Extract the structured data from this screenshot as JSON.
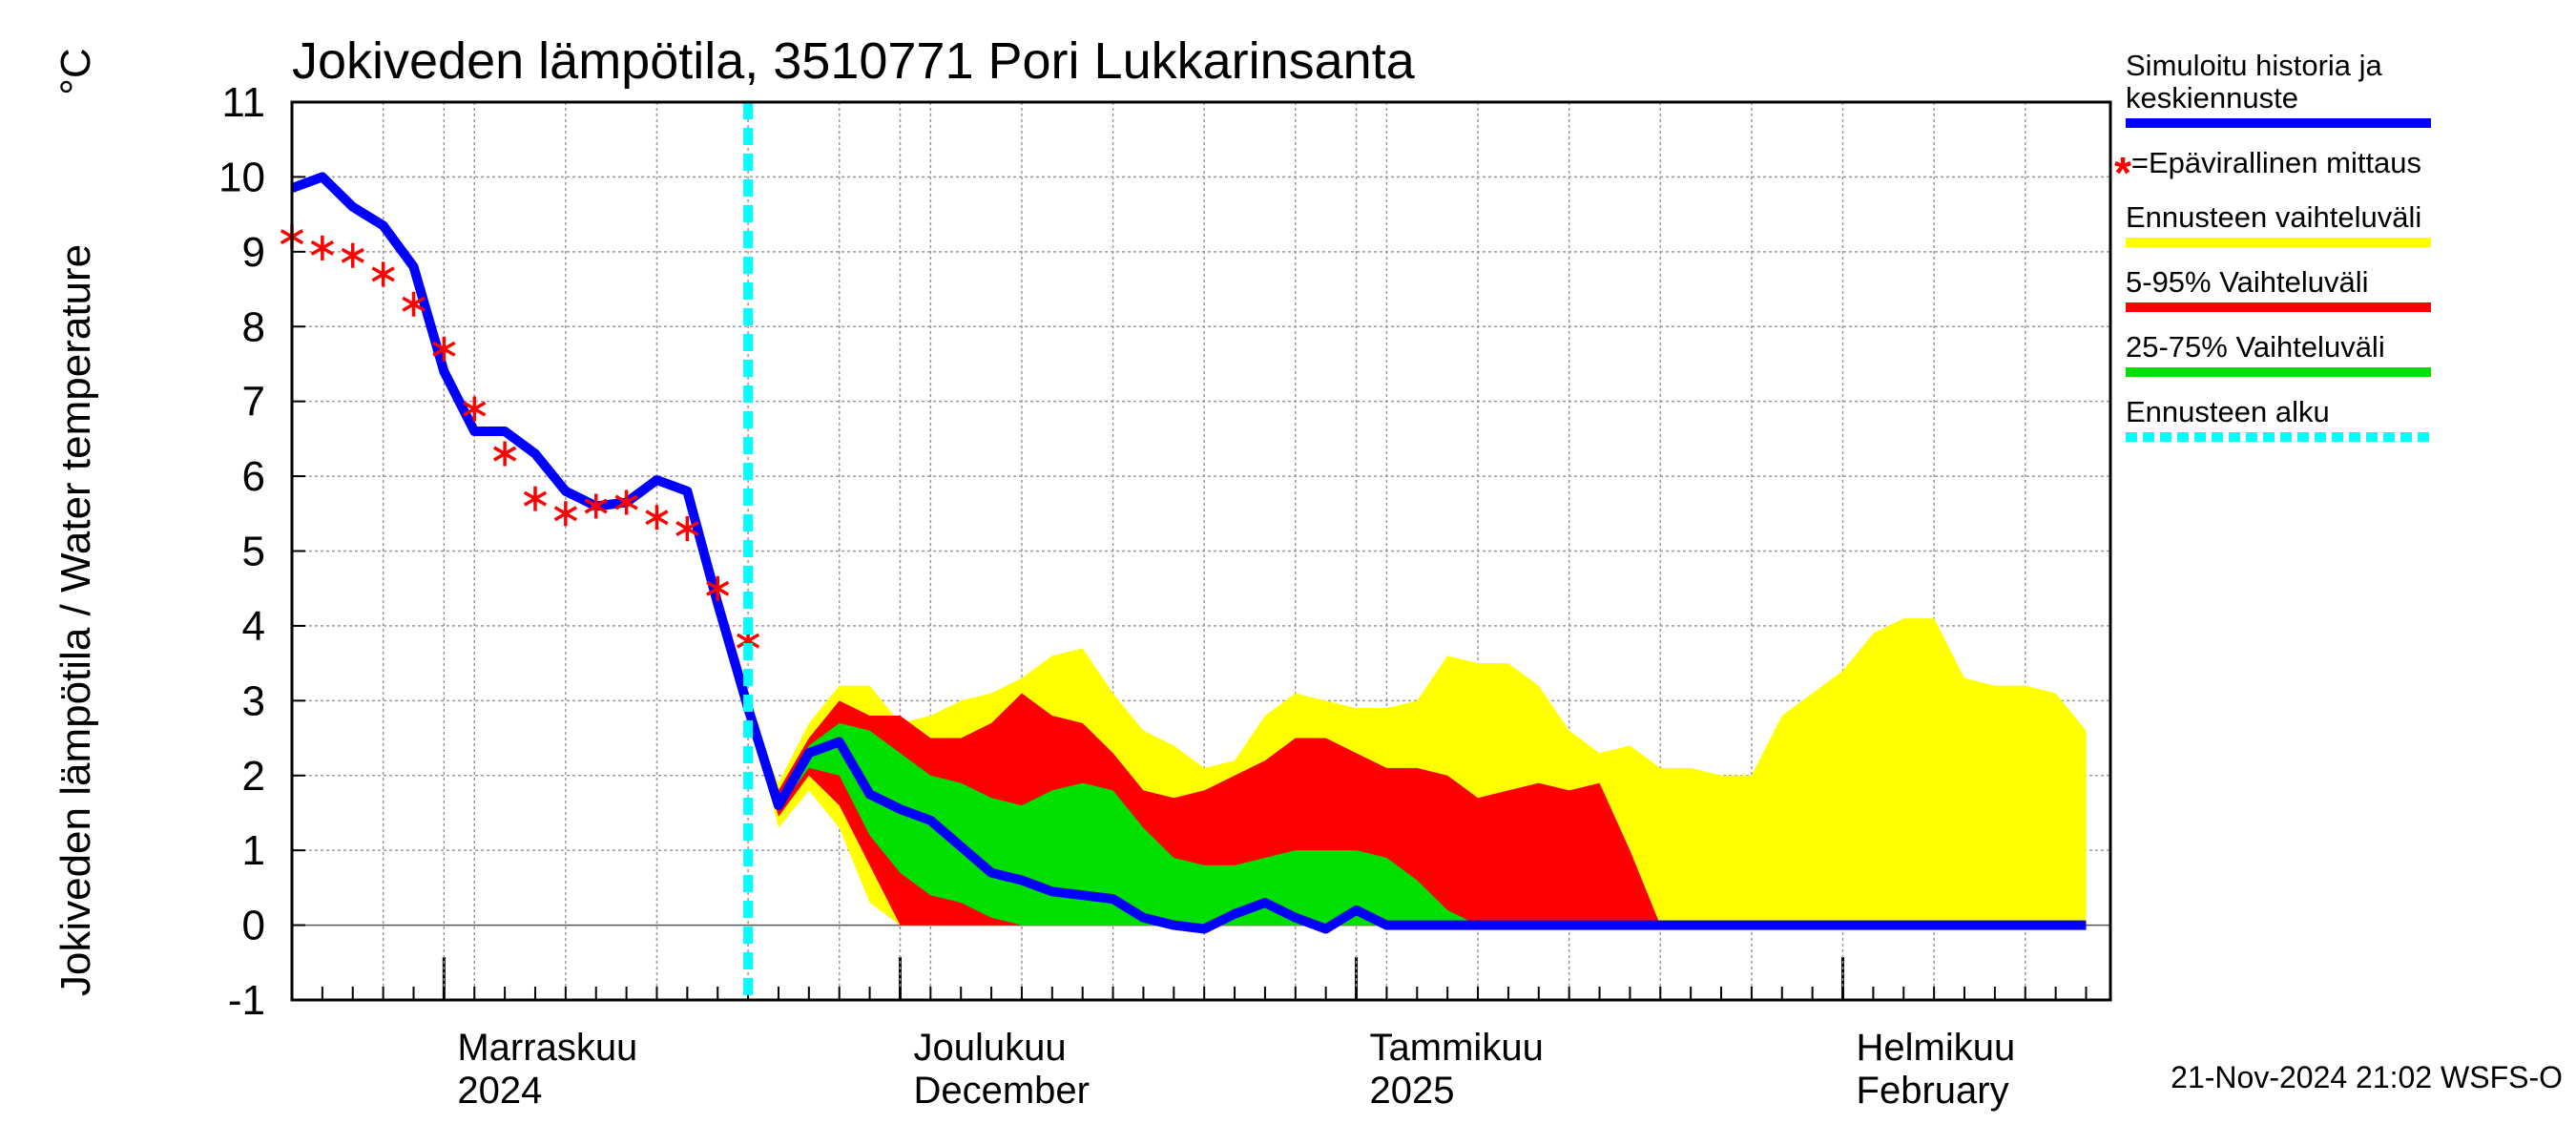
{
  "chart_data": {
    "type": "band-line",
    "title": "Jokiveden lämpötila, 3510771 Pori Lukkarinsanta",
    "y_label": "Jokiveden lämpötila / Water temperature",
    "y_unit": "°C",
    "timestamp": "21-Nov-2024 21:02 WSFS-O",
    "categories": [
      null,
      null,
      null,
      null,
      null,
      "Marraskuu",
      null,
      null,
      null,
      null,
      null,
      null,
      null,
      null,
      null,
      null,
      null,
      null,
      null,
      null,
      "Joulukuu",
      null,
      null,
      null,
      null,
      null,
      null,
      null,
      null,
      null,
      null,
      null,
      null,
      null,
      null,
      "Tammikuu",
      null,
      null,
      null,
      null,
      null,
      null,
      null,
      null,
      null,
      null,
      null,
      null,
      null,
      null,
      null,
      "Helmikuu",
      null,
      null,
      null,
      null,
      null,
      null,
      null,
      null
    ],
    "categories_2": [
      null,
      null,
      null,
      null,
      null,
      "2024",
      null,
      null,
      null,
      null,
      null,
      null,
      null,
      null,
      null,
      null,
      null,
      null,
      null,
      null,
      "December",
      null,
      null,
      null,
      null,
      null,
      null,
      null,
      null,
      null,
      null,
      null,
      null,
      null,
      null,
      "2025",
      null,
      null,
      null,
      null,
      null,
      null,
      null,
      null,
      null,
      null,
      null,
      null,
      null,
      null,
      null,
      "February",
      null,
      null,
      null,
      null,
      null,
      null,
      null,
      null
    ],
    "ylim": [
      -1,
      11
    ],
    "yticks": [
      -1,
      0,
      1,
      2,
      3,
      4,
      5,
      6,
      7,
      8,
      9,
      10,
      11
    ],
    "grid": true,
    "forecast_start": {
      "name": "Ennusteen alku",
      "color": "#00ffff",
      "index": 15
    },
    "series": [
      {
        "name": "Simuloitu historia ja keskiennuste",
        "kind": "line",
        "color": "#0000ff",
        "values": [
          9.85,
          10.0,
          9.6,
          9.35,
          8.8,
          7.4,
          6.6,
          6.6,
          6.3,
          5.8,
          5.6,
          5.65,
          5.95,
          5.8,
          4.3,
          2.9,
          1.6,
          2.3,
          2.45,
          1.75,
          1.55,
          1.4,
          1.05,
          0.7,
          0.6,
          0.45,
          0.4,
          0.35,
          0.1,
          0.0,
          -0.05,
          0.15,
          0.3,
          0.1,
          -0.05,
          0.2,
          0,
          0,
          0,
          0,
          0,
          0,
          0,
          0,
          0,
          0,
          0,
          0,
          0,
          0,
          0,
          0,
          0,
          0,
          0,
          0,
          0,
          0,
          0,
          0
        ]
      },
      {
        "name": "=Epävirallinen mittaus",
        "kind": "marker",
        "color": "#ff0000",
        "values": [
          9.2,
          9.05,
          8.95,
          8.7,
          8.3,
          7.7,
          6.9,
          6.3,
          5.7,
          5.5,
          5.6,
          5.65,
          5.45,
          5.3,
          4.5,
          3.8,
          null,
          null,
          null,
          null,
          null,
          null,
          null,
          null,
          null,
          null,
          null,
          null,
          null,
          null,
          null,
          null,
          null,
          null,
          null,
          null,
          null,
          null,
          null,
          null,
          null,
          null,
          null,
          null,
          null,
          null,
          null,
          null,
          null,
          null,
          null,
          null,
          null,
          null,
          null,
          null,
          null,
          null,
          null,
          null
        ]
      },
      {
        "name": "Ennusteen vaihteluväli",
        "kind": "band",
        "color": "#ffff00",
        "high": [
          null,
          null,
          null,
          null,
          null,
          null,
          null,
          null,
          null,
          null,
          null,
          null,
          null,
          null,
          null,
          2.9,
          1.9,
          2.7,
          3.2,
          3.2,
          2.7,
          2.8,
          3.0,
          3.1,
          3.3,
          3.6,
          3.7,
          3.1,
          2.6,
          2.4,
          2.1,
          2.2,
          2.8,
          3.1,
          3.0,
          2.9,
          2.9,
          3.0,
          3.6,
          3.5,
          3.5,
          3.2,
          2.6,
          2.3,
          2.4,
          2.1,
          2.1,
          2.0,
          2.0,
          2.8,
          3.1,
          3.4,
          3.9,
          4.1,
          4.1,
          3.3,
          3.2,
          3.2,
          3.1,
          2.6
        ],
        "low": [
          null,
          null,
          null,
          null,
          null,
          null,
          null,
          null,
          null,
          null,
          null,
          null,
          null,
          null,
          null,
          2.9,
          1.3,
          1.8,
          1.3,
          0.3,
          0,
          0,
          0,
          0,
          0,
          0,
          0,
          0,
          0,
          0,
          0,
          0,
          0,
          0,
          0,
          0,
          0,
          0,
          0,
          0,
          0,
          0,
          0,
          0,
          0,
          0,
          0,
          0,
          0,
          0,
          0,
          0,
          0,
          0,
          0,
          0,
          0,
          0,
          0,
          0
        ]
      },
      {
        "name": "5-95% Vaihteluväli",
        "kind": "band",
        "color": "#ff0000",
        "high": [
          null,
          null,
          null,
          null,
          null,
          null,
          null,
          null,
          null,
          null,
          null,
          null,
          null,
          null,
          null,
          2.9,
          1.8,
          2.5,
          3.0,
          2.8,
          2.8,
          2.5,
          2.5,
          2.7,
          3.1,
          2.8,
          2.7,
          2.3,
          1.8,
          1.7,
          1.8,
          2.0,
          2.2,
          2.5,
          2.5,
          2.3,
          2.1,
          2.1,
          2.0,
          1.7,
          1.8,
          1.9,
          1.8,
          1.9,
          1.0,
          0,
          0,
          0,
          0,
          0,
          0,
          0,
          0,
          0,
          0,
          0,
          0,
          0,
          0,
          0
        ],
        "low": [
          null,
          null,
          null,
          null,
          null,
          null,
          null,
          null,
          null,
          null,
          null,
          null,
          null,
          null,
          null,
          2.9,
          1.45,
          2.0,
          1.6,
          0.8,
          0,
          0,
          0,
          0,
          0,
          0,
          0,
          0,
          0,
          0,
          0,
          0,
          0,
          0,
          0,
          0,
          0,
          0,
          0,
          0,
          0,
          0,
          0,
          0,
          0,
          0,
          0,
          0,
          0,
          0,
          0,
          0,
          0,
          0,
          0,
          0,
          0,
          0,
          0,
          0
        ]
      },
      {
        "name": "25-75% Vaihteluväli",
        "kind": "band",
        "color": "#00e000",
        "high": [
          null,
          null,
          null,
          null,
          null,
          null,
          null,
          null,
          null,
          null,
          null,
          null,
          null,
          null,
          null,
          2.9,
          1.7,
          2.4,
          2.7,
          2.6,
          2.3,
          2.0,
          1.9,
          1.7,
          1.6,
          1.8,
          1.9,
          1.8,
          1.3,
          0.9,
          0.8,
          0.8,
          0.9,
          1.0,
          1.0,
          1.0,
          0.9,
          0.6,
          0.2,
          0,
          0,
          0,
          0,
          0,
          0,
          0,
          0,
          0,
          0,
          0,
          0,
          0,
          0,
          0,
          0,
          0,
          0,
          0,
          0,
          0
        ],
        "low": [
          null,
          null,
          null,
          null,
          null,
          null,
          null,
          null,
          null,
          null,
          null,
          null,
          null,
          null,
          null,
          2.9,
          1.55,
          2.1,
          2.0,
          1.2,
          0.7,
          0.4,
          0.3,
          0.1,
          0,
          0,
          0,
          0,
          0,
          0,
          0,
          0,
          0,
          0,
          0,
          0,
          0,
          0,
          0,
          0,
          0,
          0,
          0,
          0,
          0,
          0,
          0,
          0,
          0,
          0,
          0,
          0,
          0,
          0,
          0,
          0,
          0,
          0,
          0,
          0
        ]
      }
    ]
  }
}
